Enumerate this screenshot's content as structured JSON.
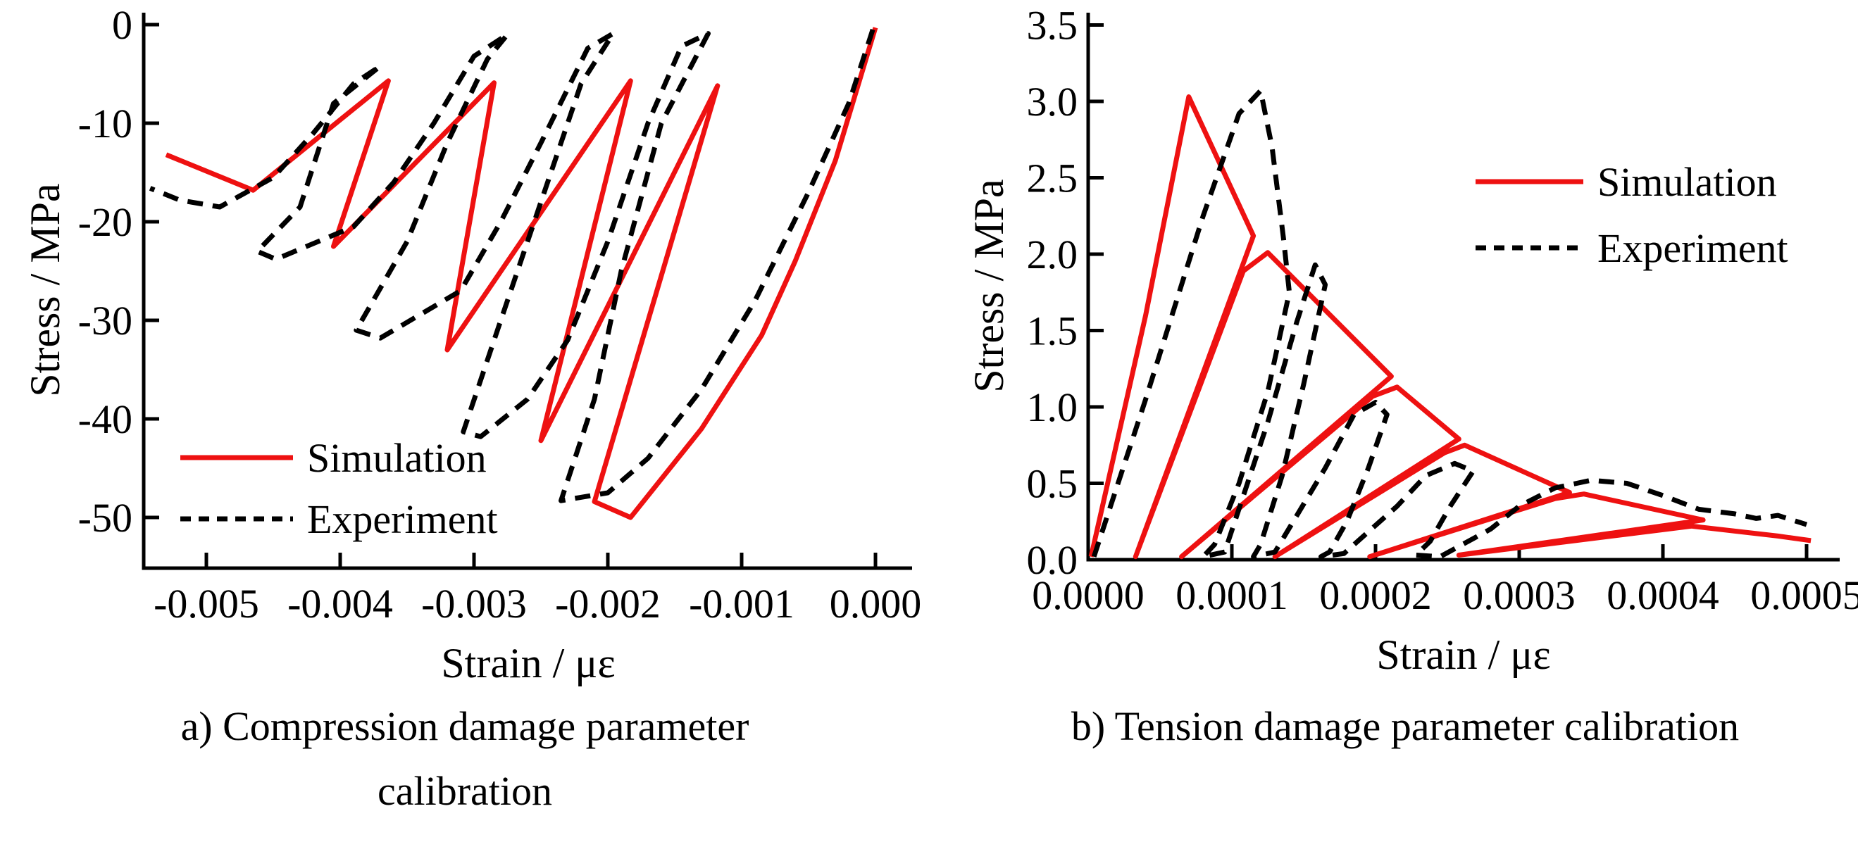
{
  "figure": {
    "background": "#ffffff",
    "description_visible_text_only": true
  },
  "colors": {
    "simulation": "#ee1111",
    "experiment": "#000000",
    "axis": "#000000"
  },
  "chart_data": [
    {
      "id": "compression",
      "type": "line",
      "title": "",
      "xlabel": "Strain / με",
      "ylabel": "Stress / MPa",
      "xlim": [
        -0.00547,
        0.00027
      ],
      "ylim": [
        -55.2,
        1.2
      ],
      "grid": false,
      "legend_position": "lower-left-inside",
      "caption": [
        "a) Compression damage parameter",
        "calibration"
      ],
      "x_ticks": [
        {
          "v": -0.005,
          "label": "-0.005"
        },
        {
          "v": -0.004,
          "label": "-0.004"
        },
        {
          "v": -0.003,
          "label": "-0.003"
        },
        {
          "v": -0.002,
          "label": "-0.002"
        },
        {
          "v": -0.001,
          "label": "-0.001"
        },
        {
          "v": 0.0,
          "label": "0.000"
        }
      ],
      "y_ticks": [
        {
          "v": 0,
          "label": "0"
        },
        {
          "v": -10,
          "label": "-10"
        },
        {
          "v": -20,
          "label": "-20"
        },
        {
          "v": -30,
          "label": "-30"
        },
        {
          "v": -40,
          "label": "-40"
        },
        {
          "v": -50,
          "label": "-50"
        }
      ],
      "series": [
        {
          "name": "Simulation",
          "style": "solid",
          "color_key": "simulation",
          "points": [
            [
              0.0,
              -0.3
            ],
            [
              -0.0003,
              -13.8
            ],
            [
              -0.0006,
              -24.0
            ],
            [
              -0.00085,
              -31.5
            ],
            [
              -0.0013,
              -41.0
            ],
            [
              -0.00183,
              -50.0
            ],
            [
              -0.0021,
              -48.4
            ],
            [
              -0.00118,
              -6.2
            ],
            [
              -0.0025,
              -42.2
            ],
            [
              -0.00183,
              -5.7
            ],
            [
              -0.0032,
              -33.0
            ],
            [
              -0.00285,
              -5.9
            ],
            [
              -0.00405,
              -22.5
            ],
            [
              -0.00364,
              -5.7
            ],
            [
              -0.00465,
              -16.8
            ],
            [
              -0.0053,
              -13.2
            ]
          ]
        },
        {
          "name": "Experiment",
          "style": "dashed",
          "color_key": "experiment",
          "points": [
            [
              -2e-05,
              -0.5
            ],
            [
              -0.0002,
              -8.0
            ],
            [
              -0.0005,
              -17.0
            ],
            [
              -0.0009,
              -28.0
            ],
            [
              -0.0013,
              -37.0
            ],
            [
              -0.0017,
              -44.0
            ],
            [
              -0.002,
              -47.5
            ],
            [
              -0.00235,
              -48.3
            ],
            [
              -0.0021,
              -38.0
            ],
            [
              -0.0019,
              -25.0
            ],
            [
              -0.0016,
              -10.0
            ],
            [
              -0.00125,
              -0.9
            ],
            [
              -0.00145,
              -2.2
            ],
            [
              -0.0017,
              -10.0
            ],
            [
              -0.002,
              -22.0
            ],
            [
              -0.0023,
              -32.0
            ],
            [
              -0.0026,
              -38.0
            ],
            [
              -0.00295,
              -41.8
            ],
            [
              -0.00308,
              -41.3
            ],
            [
              -0.0028,
              -30.0
            ],
            [
              -0.0025,
              -18.0
            ],
            [
              -0.0022,
              -6.0
            ],
            [
              -0.00196,
              -0.9
            ],
            [
              -0.00215,
              -2.4
            ],
            [
              -0.0025,
              -12.0
            ],
            [
              -0.0028,
              -20.0
            ],
            [
              -0.0031,
              -27.0
            ],
            [
              -0.0037,
              -31.8
            ],
            [
              -0.00388,
              -31.0
            ],
            [
              -0.0035,
              -22.0
            ],
            [
              -0.0032,
              -12.0
            ],
            [
              -0.0029,
              -3.5
            ],
            [
              -0.00275,
              -1.0
            ],
            [
              -0.003,
              -3.2
            ],
            [
              -0.0033,
              -10.0
            ],
            [
              -0.0036,
              -16.0
            ],
            [
              -0.0039,
              -20.5
            ],
            [
              -0.00448,
              -23.8
            ],
            [
              -0.00462,
              -23.0
            ],
            [
              -0.0043,
              -18.5
            ],
            [
              -0.00405,
              -8.0
            ],
            [
              -0.0037,
              -4.2
            ],
            [
              -0.0039,
              -6.0
            ],
            [
              -0.0042,
              -11.0
            ],
            [
              -0.0045,
              -15.5
            ],
            [
              -0.0049,
              -18.5
            ],
            [
              -0.0052,
              -17.8
            ],
            [
              -0.00542,
              -16.6
            ]
          ]
        }
      ],
      "legend": [
        {
          "label": "Simulation",
          "style": "solid",
          "color_key": "simulation"
        },
        {
          "label": "Experiment",
          "style": "dashed",
          "color_key": "experiment"
        }
      ]
    },
    {
      "id": "tension",
      "type": "line",
      "title": "",
      "xlabel": "Strain / με",
      "ylabel": "Stress / MPa",
      "xlim": [
        0.0,
        0.000523
      ],
      "ylim": [
        0.0,
        3.58
      ],
      "grid": false,
      "legend_position": "upper-right-inside",
      "caption": [
        "b) Tension damage parameter calibration"
      ],
      "x_ticks": [
        {
          "v": 0.0,
          "label": "0.0000"
        },
        {
          "v": 0.0001,
          "label": "0.0001"
        },
        {
          "v": 0.0002,
          "label": "0.0002"
        },
        {
          "v": 0.0003,
          "label": "0.0003"
        },
        {
          "v": 0.0004,
          "label": "0.0004"
        },
        {
          "v": 0.0005,
          "label": "0.0005"
        }
      ],
      "y_ticks": [
        {
          "v": 0.0,
          "label": "0.0"
        },
        {
          "v": 0.5,
          "label": "0.5"
        },
        {
          "v": 1.0,
          "label": "1.0"
        },
        {
          "v": 1.5,
          "label": "1.5"
        },
        {
          "v": 2.0,
          "label": "2.0"
        },
        {
          "v": 2.5,
          "label": "2.5"
        },
        {
          "v": 3.0,
          "label": "3.0"
        },
        {
          "v": 3.5,
          "label": "3.5"
        }
      ],
      "series": [
        {
          "name": "Simulation",
          "style": "solid",
          "color_key": "simulation",
          "points": [
            [
              2e-06,
              0.02
            ],
            [
              4e-05,
              1.6
            ],
            [
              7e-05,
              3.03
            ],
            [
              0.000115,
              2.12
            ],
            [
              3.3e-05,
              0.02
            ],
            [
              0.000108,
              1.89
            ],
            [
              0.000125,
              2.01
            ],
            [
              0.000211,
              1.2
            ],
            [
              6.5e-05,
              0.02
            ],
            [
              0.000198,
              1.07
            ],
            [
              0.000215,
              1.13
            ],
            [
              0.000258,
              0.79
            ],
            [
              0.00013,
              0.02
            ],
            [
              0.000248,
              0.7
            ],
            [
              0.000262,
              0.75
            ],
            [
              0.000335,
              0.44
            ],
            [
              0.000196,
              0.02
            ],
            [
              0.000325,
              0.4
            ],
            [
              0.000345,
              0.43
            ],
            [
              0.000428,
              0.26
            ],
            [
              0.000258,
              0.03
            ],
            [
              0.00042,
              0.22
            ],
            [
              0.00048,
              0.155
            ],
            [
              0.000503,
              0.125
            ]
          ]
        },
        {
          "name": "Experiment",
          "style": "dashed",
          "color_key": "experiment",
          "points": [
            [
              4e-06,
              0.02
            ],
            [
              4e-05,
              1.05
            ],
            [
              8e-05,
              2.25
            ],
            [
              0.000105,
              2.92
            ],
            [
              0.00012,
              3.07
            ],
            [
              0.000128,
              2.7
            ],
            [
              0.000136,
              2.1
            ],
            [
              0.00014,
              1.75
            ],
            [
              0.000125,
              1.1
            ],
            [
              0.000105,
              0.5
            ],
            [
              8.8e-05,
              0.1
            ],
            [
              8e-05,
              0.02
            ],
            [
              9.5e-05,
              0.05
            ],
            [
              0.000125,
              0.9
            ],
            [
              0.000145,
              1.55
            ],
            [
              0.000158,
              1.93
            ],
            [
              0.000165,
              1.8
            ],
            [
              0.00015,
              1.15
            ],
            [
              0.000135,
              0.55
            ],
            [
              0.00012,
              0.1
            ],
            [
              0.000115,
              0.02
            ],
            [
              0.00013,
              0.05
            ],
            [
              0.000165,
              0.6
            ],
            [
              0.000185,
              0.95
            ],
            [
              0.0002,
              1.03
            ],
            [
              0.000208,
              0.95
            ],
            [
              0.000195,
              0.6
            ],
            [
              0.00018,
              0.25
            ],
            [
              0.000168,
              0.05
            ],
            [
              0.000162,
              0.02
            ],
            [
              0.000178,
              0.04
            ],
            [
              0.000215,
              0.35
            ],
            [
              0.000235,
              0.55
            ],
            [
              0.000255,
              0.63
            ],
            [
              0.000268,
              0.58
            ],
            [
              0.000252,
              0.35
            ],
            [
              0.000238,
              0.12
            ],
            [
              0.000228,
              0.03
            ],
            [
              0.000245,
              0.02
            ],
            [
              0.00028,
              0.2
            ],
            [
              0.0003,
              0.35
            ],
            [
              0.000325,
              0.47
            ],
            [
              0.00035,
              0.52
            ],
            [
              0.000375,
              0.5
            ],
            [
              0.0004,
              0.42
            ],
            [
              0.000425,
              0.33
            ],
            [
              0.00045,
              0.3
            ],
            [
              0.000465,
              0.27
            ],
            [
              0.00048,
              0.29
            ],
            [
              0.0005,
              0.23
            ]
          ]
        }
      ],
      "legend": [
        {
          "label": "Simulation",
          "style": "solid",
          "color_key": "simulation"
        },
        {
          "label": "Experiment",
          "style": "dashed",
          "color_key": "experiment"
        }
      ]
    }
  ]
}
